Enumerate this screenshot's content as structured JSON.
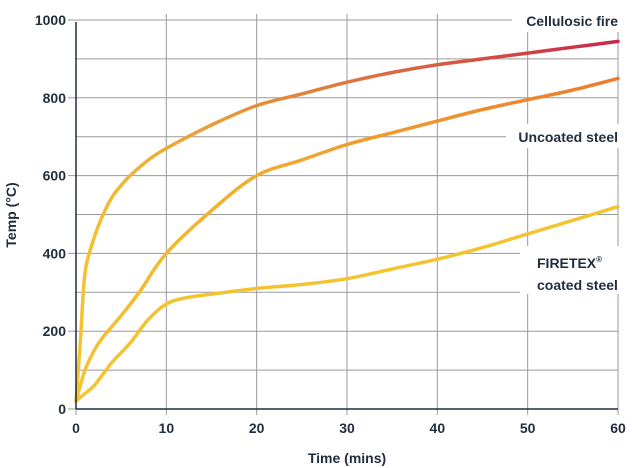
{
  "chart_data": {
    "type": "line",
    "xlabel": "Time (mins)",
    "ylabel": "Temp (°C)",
    "xlim": [
      0,
      60
    ],
    "ylim": [
      0,
      1000
    ],
    "xticks": [
      "0",
      "10",
      "20",
      "30",
      "40",
      "50",
      "60"
    ],
    "yticks": [
      "0",
      "200",
      "400",
      "600",
      "800",
      "1000"
    ],
    "grid": true,
    "legend": "inline labels on the right",
    "series": [
      {
        "name": "Cellulosic fire",
        "color_start": "#f4c430",
        "color_end": "#c8284a",
        "points": [
          [
            0,
            20
          ],
          [
            0.5,
            180
          ],
          [
            1,
            350
          ],
          [
            2,
            440
          ],
          [
            3,
            500
          ],
          [
            4,
            545
          ],
          [
            5,
            575
          ],
          [
            6,
            600
          ],
          [
            8,
            640
          ],
          [
            10,
            670
          ],
          [
            15,
            730
          ],
          [
            20,
            780
          ],
          [
            25,
            810
          ],
          [
            30,
            840
          ],
          [
            35,
            865
          ],
          [
            40,
            885
          ],
          [
            45,
            900
          ],
          [
            50,
            915
          ],
          [
            55,
            930
          ],
          [
            60,
            945
          ]
        ]
      },
      {
        "name": "Uncoated steel",
        "color_start": "#f4c430",
        "color_end": "#ec7a2c",
        "points": [
          [
            0,
            20
          ],
          [
            1,
            100
          ],
          [
            2,
            150
          ],
          [
            3,
            185
          ],
          [
            5,
            240
          ],
          [
            7,
            300
          ],
          [
            10,
            400
          ],
          [
            15,
            510
          ],
          [
            20,
            600
          ],
          [
            25,
            640
          ],
          [
            30,
            680
          ],
          [
            35,
            710
          ],
          [
            40,
            740
          ],
          [
            45,
            770
          ],
          [
            50,
            795
          ],
          [
            55,
            820
          ],
          [
            60,
            850
          ]
        ]
      },
      {
        "name": "FIRETEX",
        "name_reg": "®",
        "name_line2": "coated steel",
        "color_start": "#f4c430",
        "color_end": "#f4c430",
        "points": [
          [
            0,
            20
          ],
          [
            1,
            40
          ],
          [
            2,
            60
          ],
          [
            4,
            120
          ],
          [
            6,
            170
          ],
          [
            8,
            230
          ],
          [
            10,
            270
          ],
          [
            12,
            285
          ],
          [
            15,
            295
          ],
          [
            20,
            310
          ],
          [
            25,
            320
          ],
          [
            30,
            335
          ],
          [
            35,
            360
          ],
          [
            40,
            385
          ],
          [
            45,
            415
          ],
          [
            50,
            450
          ],
          [
            55,
            485
          ],
          [
            60,
            520
          ]
        ]
      }
    ]
  }
}
